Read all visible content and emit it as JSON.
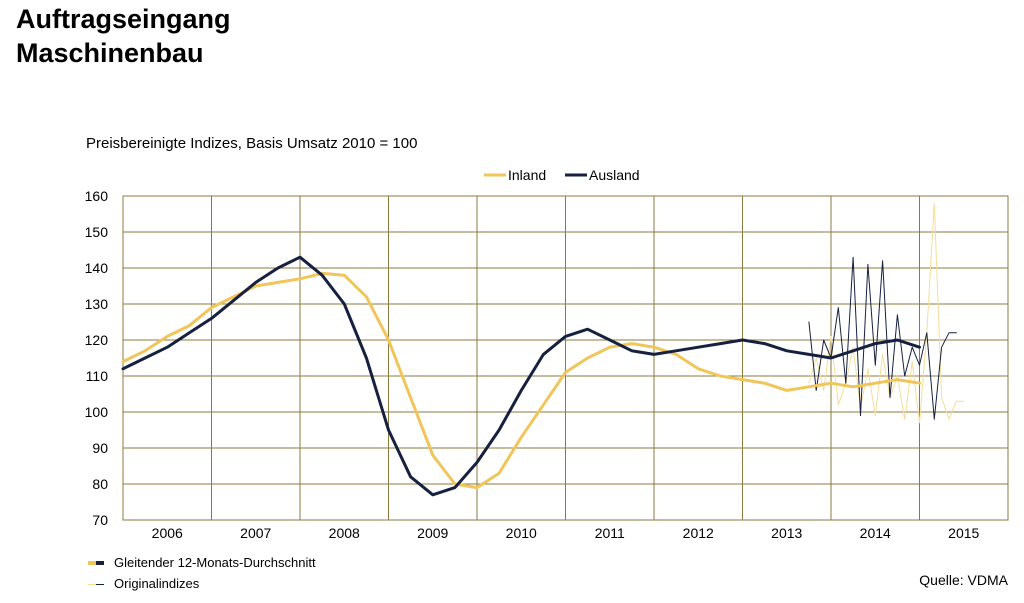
{
  "page": {
    "title_line1": "Auftragseingang",
    "title_line2": "Maschinenbau",
    "subtitle": "Preisbereinigte Indizes, Basis Umsatz 2010 = 100",
    "source": "Quelle: VDMA"
  },
  "legend_bottom": {
    "smoothed_label": "Gleitender 12-Monats-Durchschnitt",
    "original_label": "Originalindizes"
  },
  "colors": {
    "inland": "#f0c65a",
    "inland_light": "#f5dd9a",
    "ausland": "#16213f",
    "grid": "#8c7a3e"
  },
  "chart_data": {
    "type": "line",
    "title": "",
    "xlabel": "",
    "ylabel": "",
    "x_categories": [
      "2006",
      "2007",
      "2008",
      "2009",
      "2010",
      "2011",
      "2012",
      "2013",
      "2014",
      "2015"
    ],
    "ylim": [
      70,
      160
    ],
    "yticks": [
      70,
      80,
      90,
      100,
      110,
      120,
      130,
      140,
      150,
      160
    ],
    "grid": true,
    "legend_position": "top",
    "series": [
      {
        "name": "Inland",
        "kind": "smoothed",
        "x": [
          2006.0,
          2006.25,
          2006.5,
          2006.75,
          2007.0,
          2007.25,
          2007.5,
          2007.75,
          2008.0,
          2008.25,
          2008.5,
          2008.75,
          2009.0,
          2009.25,
          2009.5,
          2009.75,
          2010.0,
          2010.25,
          2010.5,
          2010.75,
          2011.0,
          2011.25,
          2011.5,
          2011.75,
          2012.0,
          2012.25,
          2012.5,
          2012.75,
          2013.0,
          2013.25,
          2013.5,
          2013.75,
          2014.0,
          2014.25,
          2014.5,
          2014.75,
          2015.0
        ],
        "y": [
          114,
          117,
          121,
          124,
          129,
          132,
          135,
          136,
          137,
          138.5,
          138,
          132,
          120,
          104,
          88,
          80,
          79,
          83,
          93,
          102,
          111,
          115,
          118,
          119,
          118,
          116,
          112,
          110,
          109,
          108,
          106,
          107,
          108,
          107,
          108,
          109,
          108
        ]
      },
      {
        "name": "Ausland",
        "kind": "smoothed",
        "x": [
          2006.0,
          2006.25,
          2006.5,
          2006.75,
          2007.0,
          2007.25,
          2007.5,
          2007.75,
          2008.0,
          2008.25,
          2008.5,
          2008.75,
          2009.0,
          2009.25,
          2009.5,
          2009.75,
          2010.0,
          2010.25,
          2010.5,
          2010.75,
          2011.0,
          2011.25,
          2011.5,
          2011.75,
          2012.0,
          2012.25,
          2012.5,
          2012.75,
          2013.0,
          2013.25,
          2013.5,
          2013.75,
          2014.0,
          2014.25,
          2014.5,
          2014.75,
          2015.0
        ],
        "y": [
          112,
          115,
          118,
          122,
          126,
          131,
          136,
          140,
          143,
          138,
          130,
          115,
          95,
          82,
          77,
          79,
          86,
          95,
          106,
          116,
          121,
          123,
          120,
          117,
          116,
          117,
          118,
          119,
          120,
          119,
          117,
          116,
          115,
          117,
          119,
          120,
          118
        ]
      },
      {
        "name": "Inland Originalindizes",
        "kind": "original",
        "x": [
          2013.75,
          2013.833,
          2013.917,
          2014.0,
          2014.083,
          2014.167,
          2014.25,
          2014.333,
          2014.417,
          2014.5,
          2014.583,
          2014.667,
          2014.75,
          2014.833,
          2014.917,
          2015.0,
          2015.083,
          2015.167,
          2015.25,
          2015.333,
          2015.417,
          2015.5
        ],
        "y": [
          108,
          115,
          106,
          121,
          102,
          108,
          118,
          101,
          112,
          99,
          116,
          104,
          110,
          98,
          114,
          97,
          122,
          158,
          104,
          98,
          103,
          103
        ]
      },
      {
        "name": "Ausland Originalindizes",
        "kind": "original",
        "x": [
          2013.75,
          2013.833,
          2013.917,
          2014.0,
          2014.083,
          2014.167,
          2014.25,
          2014.333,
          2014.417,
          2014.5,
          2014.583,
          2014.667,
          2014.75,
          2014.833,
          2014.917,
          2015.0,
          2015.083,
          2015.167,
          2015.25,
          2015.333,
          2015.417
        ],
        "y": [
          125,
          106,
          120,
          115,
          129,
          108,
          143,
          99,
          141,
          113,
          142,
          104,
          127,
          110,
          118,
          113,
          122,
          98,
          118,
          122,
          122
        ]
      }
    ]
  }
}
